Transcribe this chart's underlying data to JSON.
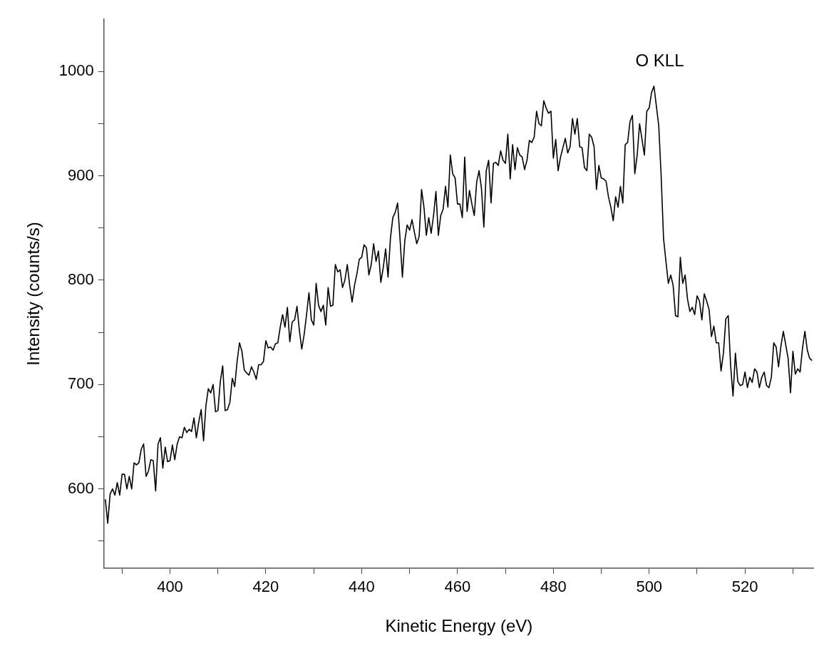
{
  "chart_data": {
    "type": "line",
    "xlabel": "Kinetic Energy (eV)",
    "ylabel": "Intensity (counts/s)",
    "xlim": [
      386.2,
      534.4
    ],
    "ylim": [
      524,
      1050
    ],
    "xticks": [
      {
        "value": 390,
        "label": null
      },
      400,
      {
        "value": 410,
        "label": null
      },
      420,
      {
        "value": 430,
        "label": null
      },
      440,
      {
        "value": 450,
        "label": null
      },
      460,
      {
        "value": 470,
        "label": null
      },
      480,
      {
        "value": 490,
        "label": null
      },
      500,
      {
        "value": 510,
        "label": null
      },
      520,
      {
        "value": 530,
        "label": null
      }
    ],
    "yticks": [
      {
        "value": 550,
        "label": null
      },
      600,
      {
        "value": 650,
        "label": null
      },
      700,
      {
        "value": 750,
        "label": null
      },
      800,
      {
        "value": 850,
        "label": null
      },
      900,
      {
        "value": 950,
        "label": null
      },
      1000
    ],
    "grid": false,
    "legend": false,
    "marker": "none",
    "line_style": "solid",
    "annotations": [
      "O KLL"
    ],
    "series": [
      {
        "color": "#000000",
        "x": [
          386.5,
          387,
          387.5,
          388,
          388.5,
          389,
          389.5,
          390,
          390.5,
          391,
          391.5,
          392,
          392.5,
          393,
          393.5,
          394,
          394.5,
          395,
          395.5,
          396,
          396.5,
          397,
          397.5,
          398,
          398.5,
          399,
          399.5,
          400,
          400.5,
          401,
          401.5,
          402,
          402.5,
          403,
          403.5,
          404,
          404.5,
          405,
          405.5,
          406,
          406.5,
          407,
          407.5,
          408,
          408.5,
          409,
          409.5,
          410,
          410.5,
          411,
          411.5,
          412,
          412.5,
          413,
          413.5,
          414,
          414.5,
          415,
          415.5,
          416,
          416.5,
          417,
          417.5,
          418,
          418.5,
          419,
          419.5,
          420,
          420.5,
          421,
          421.5,
          422,
          422.5,
          423,
          423.5,
          424,
          424.5,
          425,
          425.5,
          426,
          426.5,
          427,
          427.5,
          428,
          428.5,
          429,
          429.5,
          430,
          430.5,
          431,
          431.5,
          432,
          432.5,
          433,
          433.5,
          434,
          434.5,
          435,
          435.5,
          436,
          436.5,
          437,
          437.5,
          438,
          438.5,
          439,
          439.5,
          440,
          440.5,
          441,
          441.5,
          442,
          442.5,
          443,
          443.5,
          444,
          444.5,
          445,
          445.5,
          446,
          446.5,
          447,
          447.5,
          448,
          448.5,
          449,
          449.5,
          450,
          450.5,
          451,
          451.5,
          452,
          452.5,
          453,
          453.5,
          454,
          454.5,
          455,
          455.5,
          456,
          456.5,
          457,
          457.5,
          458,
          458.5,
          459,
          459.5,
          460,
          460.5,
          461,
          461.5,
          462,
          462.5,
          463,
          463.5,
          464,
          464.5,
          465,
          465.5,
          466,
          466.5,
          467,
          467.5,
          468,
          468.5,
          469,
          469.5,
          470,
          470.5,
          471,
          471.5,
          472,
          472.5,
          473,
          473.5,
          474,
          474.5,
          475,
          475.5,
          476,
          476.5,
          477,
          477.5,
          478,
          478.5,
          479,
          479.5,
          480,
          480.5,
          481,
          481.5,
          482,
          482.5,
          483,
          483.5,
          484,
          484.5,
          485,
          485.5,
          486,
          486.5,
          487,
          487.5,
          488,
          488.5,
          489,
          489.5,
          490,
          490.5,
          491,
          491.5,
          492,
          492.5,
          493,
          493.5,
          494,
          494.5,
          495,
          495.5,
          496,
          496.5,
          497,
          497.5,
          498,
          498.5,
          499,
          499.5,
          500,
          500.5,
          501,
          501.5,
          502,
          502.5,
          503,
          503.5,
          504,
          504.5,
          505,
          505.5,
          506,
          506.5,
          507,
          507.5,
          508,
          508.5,
          509,
          509.5,
          510,
          510.5,
          511,
          511.5,
          512,
          512.5,
          513,
          513.5,
          514,
          514.5,
          515,
          515.5,
          516,
          516.5,
          517,
          517.5,
          518,
          518.5,
          519,
          519.5,
          520,
          520.5,
          521,
          521.5,
          522,
          522.5,
          523,
          523.5,
          524,
          524.5,
          525,
          525.5,
          526,
          526.5,
          527,
          527.5,
          528,
          528.5,
          529,
          529.5,
          530,
          530.5,
          531,
          531.5,
          532,
          532.5,
          533,
          533.5,
          534
        ],
        "values": [
          590,
          567,
          595,
          600,
          594,
          606,
          594,
          614,
          614,
          600,
          612,
          600,
          625,
          623,
          625,
          638,
          643,
          612,
          617,
          628,
          627,
          598,
          643,
          649,
          620,
          640,
          626,
          627,
          642,
          628,
          643,
          650,
          649,
          659,
          654,
          657,
          655,
          668,
          649,
          664,
          676,
          646,
          680,
          696,
          692,
          700,
          674,
          675,
          703,
          718,
          675,
          676,
          683,
          706,
          698,
          722,
          740,
          732,
          714,
          711,
          709,
          717,
          712,
          705,
          719,
          719,
          722,
          742,
          735,
          736,
          733,
          739,
          740,
          755,
          767,
          755,
          774,
          741,
          760,
          762,
          775,
          752,
          734,
          748,
          767,
          788,
          762,
          757,
          797,
          776,
          770,
          776,
          757,
          793,
          775,
          776,
          815,
          808,
          810,
          793,
          800,
          815,
          795,
          779,
          795,
          806,
          820,
          822,
          834,
          831,
          805,
          815,
          835,
          818,
          828,
          798,
          812,
          830,
          803,
          840,
          860,
          865,
          874,
          840,
          803,
          838,
          853,
          848,
          858,
          846,
          835,
          842,
          887,
          870,
          843,
          860,
          845,
          862,
          885,
          843,
          862,
          868,
          890,
          870,
          920,
          902,
          898,
          873,
          873,
          860,
          918,
          866,
          886,
          873,
          862,
          894,
          905,
          888,
          851,
          905,
          915,
          874,
          912,
          913,
          910,
          924,
          915,
          912,
          940,
          897,
          930,
          906,
          927,
          920,
          918,
          906,
          915,
          934,
          932,
          937,
          962,
          950,
          948,
          972,
          965,
          960,
          962,
          917,
          935,
          905,
          918,
          927,
          936,
          922,
          928,
          955,
          940,
          955,
          928,
          927,
          908,
          905,
          940,
          937,
          928,
          887,
          910,
          898,
          897,
          895,
          880,
          870,
          857,
          880,
          870,
          890,
          874,
          930,
          932,
          952,
          958,
          902,
          920,
          950,
          935,
          920,
          962,
          965,
          980,
          986,
          967,
          948,
          900,
          840,
          818,
          797,
          805,
          795,
          766,
          765,
          822,
          797,
          805,
          782,
          770,
          774,
          767,
          785,
          780,
          762,
          787,
          780,
          772,
          746,
          756,
          740,
          740,
          713,
          730,
          763,
          766,
          718,
          689,
          730,
          703,
          699,
          700,
          712,
          697,
          707,
          702,
          715,
          712,
          697,
          707,
          712,
          699,
          697,
          707,
          740,
          736,
          717,
          737,
          751,
          738,
          725,
          692,
          732,
          710,
          715,
          712,
          735,
          751,
          733,
          725,
          723
        ]
      }
    ]
  }
}
